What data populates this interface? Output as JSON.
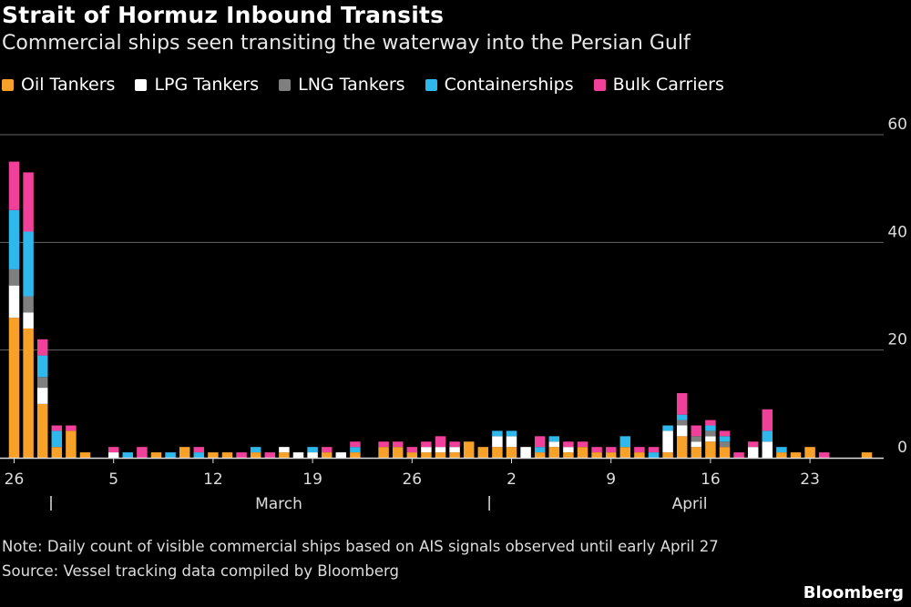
{
  "title": "Strait of Hormuz Inbound Transits",
  "subtitle": "Commercial ships seen transiting the waterway into the Persian Gulf",
  "note": "Note: Daily count of visible commercial ships based on AIS signals observed until early April 27",
  "source": "Source: Vessel tracking data compiled by Bloomberg",
  "brand": "Bloomberg",
  "chart_data": {
    "type": "bar",
    "stacked": true,
    "grid": true,
    "y_axis_position": "right",
    "ylim": [
      0,
      60
    ],
    "yticks": [
      "0",
      "20",
      "40",
      "60"
    ],
    "xticks": [
      {
        "index": 0,
        "label": "26"
      },
      {
        "index": 7,
        "label": "5"
      },
      {
        "index": 14,
        "label": "12"
      },
      {
        "index": 21,
        "label": "19"
      },
      {
        "index": 28,
        "label": "26"
      },
      {
        "index": 35,
        "label": "2"
      },
      {
        "index": 42,
        "label": "9"
      },
      {
        "index": 49,
        "label": "16"
      },
      {
        "index": 56,
        "label": "23"
      }
    ],
    "months": [
      {
        "label": "March",
        "start_index": 3,
        "end_index": 34
      },
      {
        "label": "April",
        "start_index": 34,
        "end_index": 61
      }
    ],
    "series": [
      {
        "name": "Oil Tankers",
        "color": "#f7a128",
        "values": [
          26,
          24,
          10,
          2,
          5,
          1,
          0,
          0,
          0,
          0,
          1,
          0,
          2,
          0,
          1,
          1,
          0,
          1,
          0,
          1,
          0,
          0,
          1,
          0,
          1,
          0,
          2,
          2,
          1,
          1,
          1,
          1,
          3,
          2,
          2,
          2,
          0,
          1,
          2,
          1,
          2,
          1,
          1,
          2,
          1,
          0,
          1,
          4,
          2,
          3,
          2,
          0,
          0,
          0,
          1,
          1,
          2,
          0,
          0,
          0,
          1
        ]
      },
      {
        "name": "LPG Tankers",
        "color": "#ffffff",
        "values": [
          6,
          3,
          3,
          0,
          0,
          0,
          0,
          1,
          0,
          0,
          0,
          0,
          0,
          0,
          0,
          0,
          0,
          0,
          0,
          1,
          1,
          1,
          0,
          1,
          0,
          0,
          0,
          0,
          0,
          1,
          1,
          1,
          0,
          0,
          2,
          2,
          2,
          0,
          1,
          1,
          0,
          0,
          0,
          0,
          0,
          0,
          4,
          2,
          1,
          1,
          0,
          0,
          2,
          3,
          0,
          0,
          0,
          0,
          0,
          0,
          0
        ]
      },
      {
        "name": "LNG Tankers",
        "color": "#7f7f7f",
        "values": [
          3,
          3,
          2,
          0,
          0,
          0,
          0,
          0,
          0,
          0,
          0,
          0,
          0,
          0,
          0,
          0,
          0,
          0,
          0,
          0,
          0,
          0,
          0,
          0,
          0,
          0,
          0,
          0,
          0,
          0,
          0,
          0,
          0,
          0,
          0,
          0,
          0,
          0,
          0,
          0,
          0,
          0,
          0,
          0,
          0,
          0,
          0,
          1,
          1,
          1,
          1,
          0,
          0,
          0,
          0,
          0,
          0,
          0,
          0,
          0,
          0
        ]
      },
      {
        "name": "Containerships",
        "color": "#2fb8ec",
        "values": [
          11,
          12,
          4,
          3,
          0,
          0,
          0,
          0,
          1,
          0,
          0,
          1,
          0,
          1,
          0,
          0,
          0,
          1,
          0,
          0,
          0,
          1,
          0,
          0,
          1,
          0,
          0,
          0,
          0,
          0,
          0,
          0,
          0,
          0,
          1,
          1,
          0,
          1,
          1,
          0,
          0,
          0,
          0,
          2,
          0,
          1,
          1,
          1,
          0,
          1,
          1,
          0,
          0,
          2,
          1,
          0,
          0,
          0,
          0,
          0,
          0
        ]
      },
      {
        "name": "Bulk Carriers",
        "color": "#f0409a",
        "values": [
          9,
          11,
          3,
          1,
          1,
          0,
          0,
          1,
          0,
          2,
          0,
          0,
          0,
          1,
          0,
          0,
          1,
          0,
          1,
          0,
          0,
          0,
          1,
          0,
          1,
          0,
          1,
          1,
          1,
          1,
          2,
          1,
          0,
          0,
          0,
          0,
          0,
          2,
          0,
          1,
          1,
          1,
          1,
          0,
          1,
          1,
          0,
          4,
          2,
          1,
          1,
          1,
          1,
          4,
          0,
          0,
          0,
          1,
          0,
          0,
          0
        ]
      }
    ]
  }
}
